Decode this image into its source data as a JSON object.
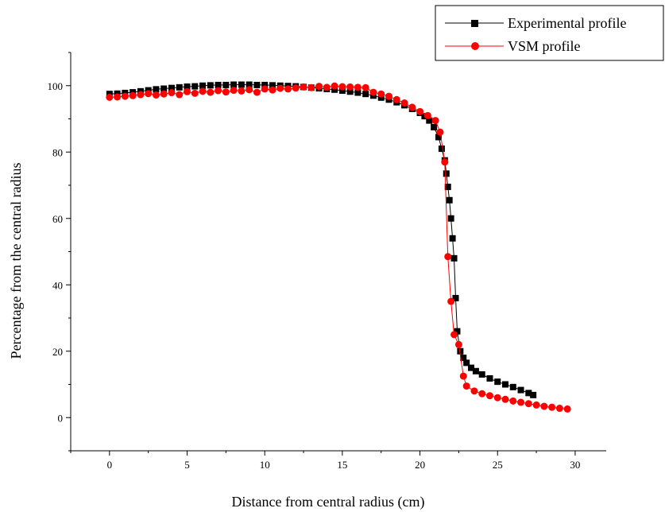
{
  "chart_data": {
    "type": "scatter",
    "title": "",
    "xlabel": "Distance from central radius (cm)",
    "ylabel": "Percentage from the central radius",
    "xlim": [
      -2.5,
      32
    ],
    "ylim": [
      -10,
      110
    ],
    "x_ticks": [
      0,
      5,
      10,
      15,
      20,
      25,
      30
    ],
    "y_ticks": [
      0,
      20,
      40,
      60,
      80,
      100
    ],
    "grid": false,
    "legend_position": "top-right",
    "series": [
      {
        "name": "Experimental profile",
        "color": "#000000",
        "marker": "square",
        "x": [
          0,
          0.5,
          1,
          1.5,
          2,
          2.5,
          3,
          3.5,
          4,
          4.5,
          5,
          5.5,
          6,
          6.5,
          7,
          7.5,
          8,
          8.5,
          9,
          9.5,
          10,
          10.5,
          11,
          11.5,
          12,
          12.5,
          13,
          13.5,
          14,
          14.5,
          15,
          15.5,
          16,
          16.5,
          17,
          17.5,
          18,
          18.5,
          19,
          19.5,
          20,
          20.3,
          20.6,
          20.9,
          21.2,
          21.4,
          21.6,
          21.7,
          21.8,
          21.9,
          22,
          22.1,
          22.2,
          22.3,
          22.4,
          22.6,
          22.8,
          23,
          23.3,
          23.6,
          24,
          24.5,
          25,
          25.5,
          26,
          26.5,
          27,
          27.3
        ],
        "y": [
          97.5,
          97.6,
          97.8,
          98.0,
          98.3,
          98.6,
          98.9,
          99.1,
          99.3,
          99.5,
          99.7,
          99.8,
          100.0,
          100.1,
          100.2,
          100.2,
          100.3,
          100.3,
          100.3,
          100.2,
          100.2,
          100.1,
          100.0,
          99.9,
          99.8,
          99.6,
          99.4,
          99.2,
          99.0,
          98.8,
          98.5,
          98.2,
          97.9,
          97.5,
          97.0,
          96.4,
          95.8,
          95.0,
          94.1,
          93.0,
          91.8,
          90.8,
          89.5,
          87.5,
          84.5,
          81.0,
          77.5,
          73.5,
          69.5,
          65.5,
          60.0,
          54.0,
          48.0,
          36.0,
          26.0,
          20.0,
          18.0,
          16.5,
          15.0,
          14.0,
          13.0,
          11.8,
          10.8,
          10.0,
          9.2,
          8.3,
          7.4,
          6.8
        ]
      },
      {
        "name": "VSM profile",
        "color": "#ff0000",
        "marker": "circle",
        "x": [
          0,
          0.5,
          1,
          1.5,
          2,
          2.5,
          3,
          3.5,
          4,
          4.5,
          5,
          5.5,
          6,
          6.5,
          7,
          7.5,
          8,
          8.5,
          9,
          9.5,
          10,
          10.5,
          11,
          11.5,
          12,
          12.5,
          13,
          13.5,
          14,
          14.5,
          15,
          15.5,
          16,
          16.5,
          17,
          17.5,
          18,
          18.5,
          19,
          19.5,
          20,
          20.5,
          21,
          21.3,
          21.6,
          21.8,
          22,
          22.2,
          22.5,
          22.8,
          23,
          23.5,
          24,
          24.5,
          25,
          25.5,
          26,
          26.5,
          27,
          27.5,
          28,
          28.5,
          29,
          29.5
        ],
        "y": [
          96.5,
          96.6,
          96.8,
          97.0,
          97.3,
          97.6,
          97.2,
          97.5,
          97.9,
          97.3,
          98.2,
          97.7,
          98.3,
          98.0,
          98.5,
          98.1,
          98.6,
          98.4,
          98.8,
          98.0,
          99.0,
          98.7,
          99.2,
          99.0,
          99.3,
          99.6,
          99.4,
          99.8,
          99.5,
          99.9,
          99.7,
          99.6,
          99.5,
          99.4,
          98.0,
          97.5,
          96.8,
          95.8,
          94.8,
          93.5,
          92.2,
          91.0,
          89.5,
          86.0,
          77.0,
          48.5,
          35.0,
          25.0,
          22.0,
          12.5,
          9.5,
          8.0,
          7.2,
          6.6,
          6.0,
          5.5,
          5.0,
          4.6,
          4.2,
          3.8,
          3.4,
          3.1,
          2.8,
          2.6
        ]
      }
    ]
  }
}
